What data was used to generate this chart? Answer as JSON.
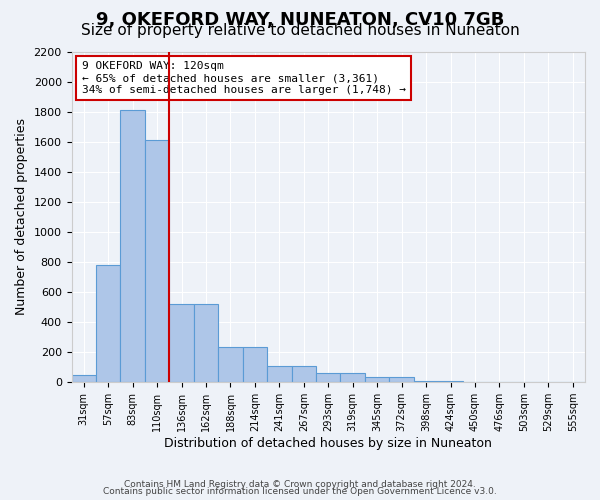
{
  "title": "9, OKEFORD WAY, NUNEATON, CV10 7GB",
  "subtitle": "Size of property relative to detached houses in Nuneaton",
  "xlabel": "Distribution of detached houses by size in Nuneaton",
  "ylabel": "Number of detached properties",
  "footnote1": "Contains HM Land Registry data © Crown copyright and database right 2024.",
  "footnote2": "Contains public sector information licensed under the Open Government Licence v3.0.",
  "bin_labels": [
    "31sqm",
    "57sqm",
    "83sqm",
    "110sqm",
    "136sqm",
    "162sqm",
    "188sqm",
    "214sqm",
    "241sqm",
    "267sqm",
    "293sqm",
    "319sqm",
    "345sqm",
    "372sqm",
    "398sqm",
    "424sqm",
    "450sqm",
    "476sqm",
    "503sqm",
    "529sqm",
    "555sqm"
  ],
  "bar_values": [
    50,
    780,
    1810,
    1610,
    520,
    520,
    235,
    235,
    105,
    105,
    60,
    60,
    35,
    35,
    10,
    5,
    2,
    1,
    0,
    0,
    0
  ],
  "bar_color": "#aec6e8",
  "bar_edgecolor": "#5b9bd5",
  "vline_x_index": 3.5,
  "vline_color": "#cc0000",
  "annotation_text": "9 OKEFORD WAY: 120sqm\n← 65% of detached houses are smaller (3,361)\n34% of semi-detached houses are larger (1,748) →",
  "annotation_box_color": "#ffffff",
  "annotation_box_edgecolor": "#cc0000",
  "ylim": [
    0,
    2200
  ],
  "yticks": [
    0,
    200,
    400,
    600,
    800,
    1000,
    1200,
    1400,
    1600,
    1800,
    2000,
    2200
  ],
  "background_color": "#eef2f8",
  "grid_color": "#ffffff",
  "title_fontsize": 13,
  "subtitle_fontsize": 11,
  "axis_fontsize": 9,
  "tick_fontsize": 8
}
